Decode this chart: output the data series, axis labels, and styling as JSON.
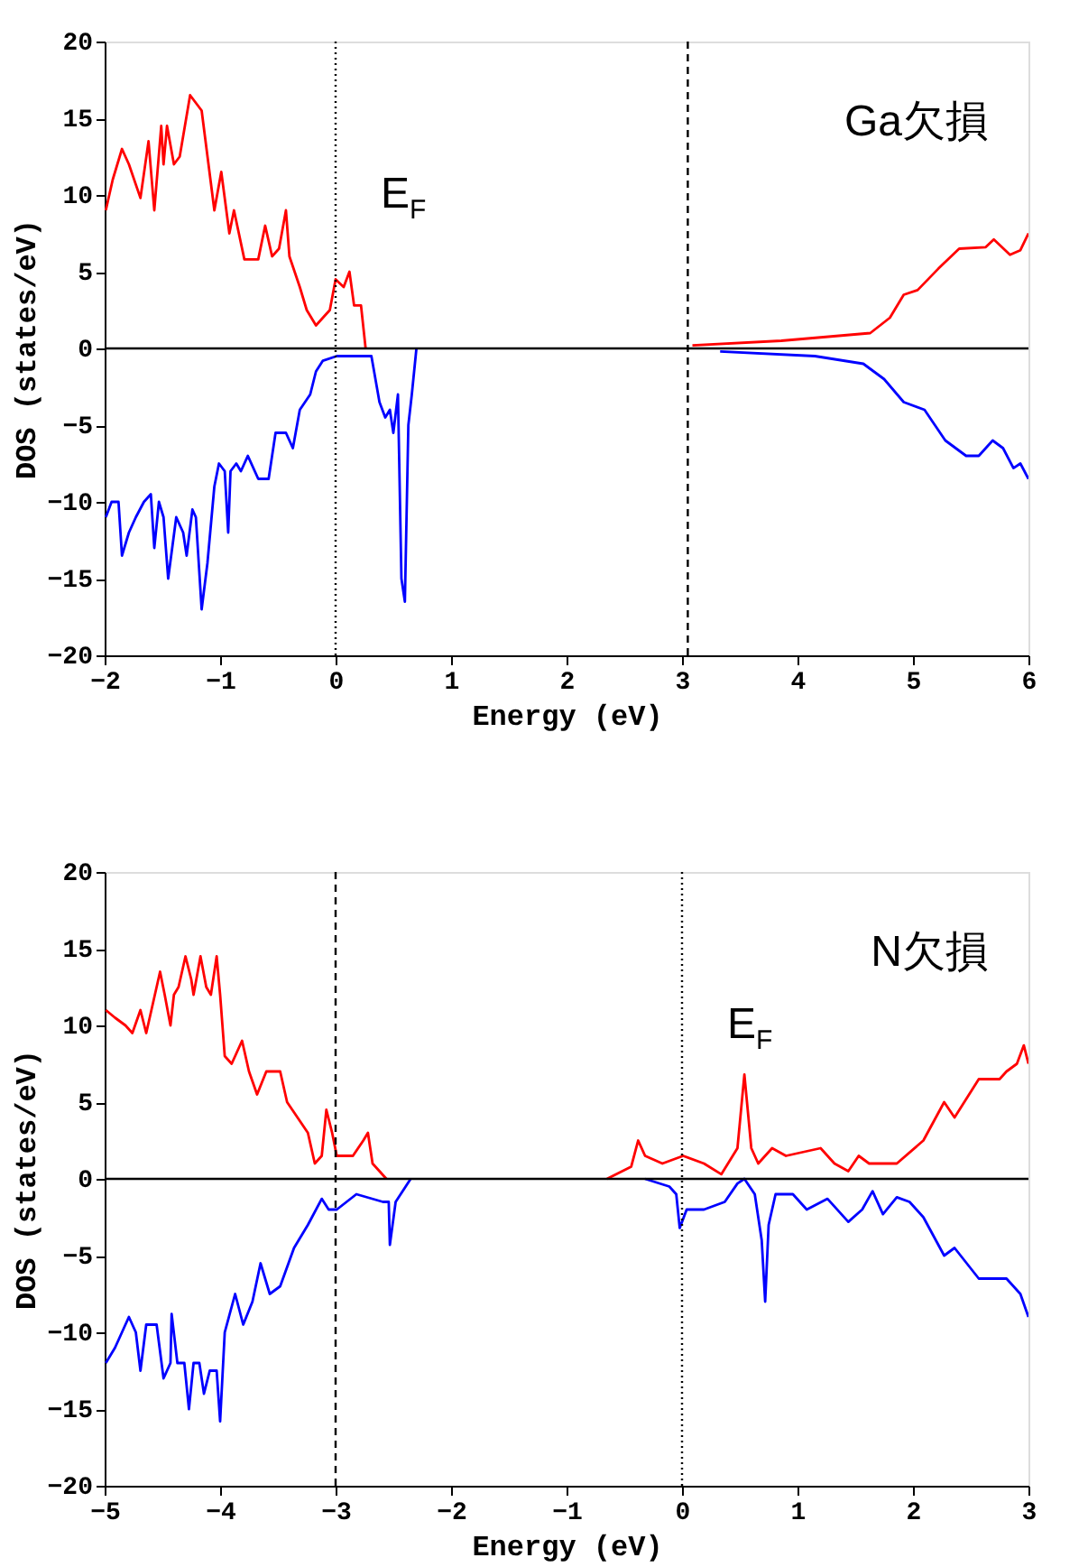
{
  "chart_data": [
    {
      "type": "line",
      "xlabel": "Energy (eV)",
      "ylabel": "DOS (states/eV)",
      "xlim": [
        -2,
        6
      ],
      "ylim": [
        -20,
        20
      ],
      "xticks": [
        -2,
        -1,
        0,
        1,
        2,
        3,
        4,
        5,
        6
      ],
      "yticks": [
        -20,
        -15,
        -10,
        -5,
        0,
        5,
        10,
        15,
        20
      ],
      "grid": false,
      "line_style": "solid",
      "marker": "none",
      "annotations": [
        "Ga欠損"
      ],
      "ref_lines": [
        {
          "axis": "x",
          "value": 0,
          "label": "E$_{F}$",
          "line_style": "dotted",
          "color": "#000000"
        },
        {
          "axis": "x",
          "value": 3.05,
          "line_style": "dashed",
          "color": "#000000"
        },
        {
          "axis": "y",
          "value": 0,
          "line_style": "solid",
          "color": "#000000"
        }
      ],
      "series": [
        {
          "color": "#ff0000",
          "x": [
            -1.99,
            -1.93,
            -1.85,
            -1.79,
            -1.69,
            -1.62,
            -1.57,
            -1.51,
            -1.49,
            -1.46,
            -1.4,
            -1.35,
            -1.26,
            -1.16,
            -1.05,
            -0.99,
            -0.92,
            -0.88,
            -0.79,
            -0.67,
            -0.61,
            -0.55,
            -0.49,
            -0.43,
            -0.4,
            -0.31,
            -0.25,
            -0.17,
            -0.05,
            0.0,
            0.07,
            0.12,
            0.16,
            0.22,
            0.26,
            1.5,
            3.09,
            3.86,
            4.63,
            4.8,
            4.92,
            5.04,
            5.22,
            5.4,
            5.63,
            5.7,
            5.84,
            5.93,
            6.0
          ],
          "values": [
            9,
            11,
            13,
            12,
            9.8,
            13.5,
            9,
            14.5,
            12,
            14.5,
            12,
            12.5,
            16.5,
            15.5,
            9,
            11.5,
            7.5,
            9,
            5.8,
            5.8,
            8,
            6,
            6.5,
            9,
            6,
            4,
            2.5,
            1.5,
            2.5,
            4.5,
            4,
            5,
            2.8,
            2.8,
            0,
            null,
            0.2,
            0.5,
            1,
            2,
            3.5,
            3.8,
            5.2,
            6.5,
            6.6,
            7.1,
            6.1,
            6.4,
            7.5
          ]
        },
        {
          "color": "#0000ff",
          "x": [
            -1.99,
            -1.94,
            -1.88,
            -1.85,
            -1.79,
            -1.73,
            -1.66,
            -1.6,
            -1.57,
            -1.53,
            -1.49,
            -1.45,
            -1.38,
            -1.32,
            -1.29,
            -1.24,
            -1.21,
            -1.16,
            -1.11,
            -1.05,
            -1.01,
            -0.96,
            -0.93,
            -0.91,
            -0.86,
            -0.82,
            -0.76,
            -0.67,
            -0.58,
            -0.52,
            -0.43,
            -0.37,
            -0.31,
            -0.22,
            -0.17,
            -0.11,
            0.01,
            0.31,
            0.38,
            0.43,
            0.47,
            0.5,
            0.54,
            0.57,
            0.6,
            0.63,
            0.66,
            0.7,
            1.5,
            3.33,
            4.15,
            4.57,
            4.75,
            4.92,
            5.1,
            5.28,
            5.46,
            5.57,
            5.69,
            5.78,
            5.87,
            5.93,
            6.0
          ],
          "values": [
            -11,
            -10,
            -10,
            -13.5,
            -12,
            -11,
            -10,
            -9.5,
            -13,
            -10,
            -11,
            -15,
            -11,
            -12,
            -13.5,
            -10.5,
            -11,
            -17,
            -14,
            -9,
            -7.5,
            -8,
            -12,
            -8,
            -7.5,
            -8,
            -7,
            -8.5,
            -8.5,
            -5.5,
            -5.5,
            -6.5,
            -4,
            -3,
            -1.5,
            -0.8,
            -0.5,
            -0.5,
            -3.5,
            -4.5,
            -4,
            -5.5,
            -3,
            -15,
            -16.5,
            -5,
            -3,
            0,
            null,
            -0.2,
            -0.5,
            -1,
            -2,
            -3.5,
            -4,
            -6,
            -7,
            -7,
            -6,
            -6.5,
            -7.8,
            -7.5,
            -8.5
          ]
        }
      ]
    },
    {
      "type": "line",
      "xlabel": "Energy (eV)",
      "ylabel": "DOS (states/eV)",
      "xlim": [
        -5,
        3
      ],
      "ylim": [
        -20,
        20
      ],
      "xticks": [
        -5,
        -4,
        -3,
        -2,
        -1,
        0,
        1,
        2,
        3
      ],
      "yticks": [
        -20,
        -15,
        -10,
        -5,
        0,
        5,
        10,
        15,
        20
      ],
      "grid": false,
      "line_style": "solid",
      "marker": "none",
      "annotations": [
        "N欠損"
      ],
      "ref_lines": [
        {
          "axis": "x",
          "value": -3,
          "line_style": "dashed",
          "color": "#000000"
        },
        {
          "axis": "x",
          "value": 0,
          "label": "E$_{F}$",
          "line_style": "dotted",
          "color": "#000000"
        },
        {
          "axis": "y",
          "value": 0,
          "line_style": "solid",
          "color": "#000000"
        }
      ],
      "series": [
        {
          "color": "#ff0000",
          "x": [
            -4.99,
            -4.91,
            -4.82,
            -4.76,
            -4.69,
            -4.64,
            -4.58,
            -4.52,
            -4.48,
            -4.43,
            -4.4,
            -4.36,
            -4.3,
            -4.25,
            -4.23,
            -4.17,
            -4.12,
            -4.08,
            -4.03,
            -4.0,
            -3.96,
            -3.9,
            -3.81,
            -3.75,
            -3.68,
            -3.6,
            -3.48,
            -3.42,
            -3.33,
            -3.24,
            -3.18,
            -3.12,
            -3.08,
            -3.03,
            -2.99,
            -2.85,
            -2.76,
            -2.72,
            -2.68,
            -2.56,
            -1.5,
            -0.65,
            -0.44,
            -0.38,
            -0.32,
            -0.17,
            0.01,
            0.19,
            0.34,
            0.48,
            0.54,
            0.6,
            0.66,
            0.78,
            0.9,
            1.2,
            1.32,
            1.44,
            1.53,
            1.62,
            1.86,
            2.09,
            2.27,
            2.36,
            2.57,
            2.75,
            2.81,
            2.9,
            2.96,
            3.0
          ],
          "values": [
            11,
            10.5,
            10,
            9.5,
            11,
            9.5,
            11.5,
            13.5,
            12,
            10,
            12,
            12.5,
            14.5,
            13,
            12,
            14.5,
            12.5,
            12,
            14.5,
            12,
            8,
            7.5,
            9,
            7,
            5.5,
            7,
            7,
            5,
            4,
            3,
            1,
            1.5,
            4.5,
            3,
            1.5,
            1.5,
            2.5,
            3,
            1,
            0,
            null,
            0,
            0.8,
            2.5,
            1.5,
            1,
            1.5,
            1,
            0.3,
            2,
            6.8,
            2,
            1,
            2,
            1.5,
            2,
            1,
            0.5,
            1.5,
            1,
            1,
            2.5,
            5,
            4,
            6.5,
            6.5,
            7,
            7.5,
            8.7,
            7.5
          ]
        },
        {
          "color": "#0000ff",
          "x": [
            -4.99,
            -4.91,
            -4.85,
            -4.79,
            -4.73,
            -4.69,
            -4.64,
            -4.55,
            -4.49,
            -4.43,
            -4.42,
            -4.37,
            -4.31,
            -4.27,
            -4.23,
            -4.18,
            -4.14,
            -4.09,
            -4.03,
            -4.0,
            -3.96,
            -3.87,
            -3.8,
            -3.72,
            -3.65,
            -3.57,
            -3.48,
            -3.36,
            -3.24,
            -3.12,
            -3.06,
            -2.99,
            -2.82,
            -2.59,
            -2.54,
            -2.53,
            -2.48,
            -2.35,
            -1.5,
            -0.32,
            -0.11,
            -0.05,
            -0.02,
            0.04,
            0.19,
            0.37,
            0.48,
            0.54,
            0.63,
            0.69,
            0.72,
            0.75,
            0.81,
            0.96,
            1.08,
            1.26,
            1.44,
            1.56,
            1.65,
            1.74,
            1.86,
            1.97,
            2.09,
            2.27,
            2.36,
            2.57,
            2.81,
            2.93,
            3.0
          ],
          "values": [
            -12,
            -11,
            -10,
            -9,
            -10,
            -12.5,
            -9.5,
            -9.5,
            -13,
            -12,
            -8.8,
            -12,
            -12,
            -15,
            -12,
            -12,
            -14,
            -12.5,
            -12.5,
            -15.8,
            -10,
            -7.5,
            -9.5,
            -8,
            -5.5,
            -7.5,
            -7,
            -4.5,
            -3,
            -1.3,
            -2,
            -2,
            -1,
            -1.5,
            -1.5,
            -4.3,
            -1.5,
            0,
            null,
            0,
            -0.5,
            -1,
            -3.2,
            -2,
            -2,
            -1.5,
            -0.3,
            0,
            -1,
            -4,
            -8,
            -3,
            -1,
            -1,
            -2,
            -1.3,
            -2.8,
            -2,
            -0.8,
            -2.3,
            -1.2,
            -1.5,
            -2.5,
            -5,
            -4.5,
            -6.5,
            -6.5,
            -7.5,
            -9
          ]
        }
      ]
    }
  ]
}
